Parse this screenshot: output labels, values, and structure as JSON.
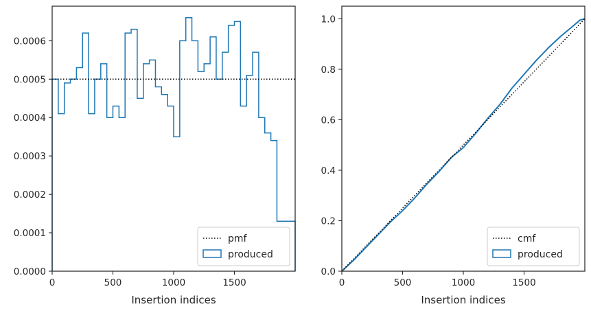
{
  "chart_data": [
    {
      "type": "histogram-step",
      "xlabel": "Insertion indices",
      "ylabel": "",
      "xlim": [
        0,
        2000
      ],
      "ylim": [
        0,
        0.00069
      ],
      "xticks": [
        0,
        500,
        1000,
        1500
      ],
      "xtick_labels": [
        "0",
        "500",
        "1000",
        "1500"
      ],
      "yticks": [
        0,
        0.0001,
        0.0002,
        0.0003,
        0.0004,
        0.0005,
        0.0006
      ],
      "ytick_labels": [
        "0.0000",
        "0.0001",
        "0.0002",
        "0.0003",
        "0.0004",
        "0.0005",
        "0.0006"
      ],
      "bin_width": 50,
      "produced": [
        0.0005,
        0.00041,
        0.00049,
        0.0005,
        0.00053,
        0.00062,
        0.00041,
        0.0005,
        0.00054,
        0.0004,
        0.00043,
        0.0004,
        0.00062,
        0.00063,
        0.00045,
        0.00054,
        0.00055,
        0.00048,
        0.00046,
        0.00043,
        0.00035,
        0.0006,
        0.00066,
        0.0006,
        0.00052,
        0.00054,
        0.00061,
        0.0005,
        0.00057,
        0.00064,
        0.00065,
        0.00043,
        0.00051,
        0.00057,
        0.0004,
        0.00036,
        0.00034,
        0.00013,
        0.00013,
        0.00013
      ],
      "pmf": 0.0005,
      "legend": {
        "position": "lower-right",
        "entries": [
          {
            "label": "pmf",
            "style": "dotted"
          },
          {
            "label": "produced",
            "style": "patch"
          }
        ]
      },
      "colors": {
        "produced": "#1f77b4",
        "pmf": "#000000"
      }
    },
    {
      "type": "line",
      "xlabel": "Insertion indices",
      "ylabel": "",
      "xlim": [
        0,
        2000
      ],
      "ylim": [
        0,
        1.05
      ],
      "xticks": [
        0,
        500,
        1000,
        1500
      ],
      "xtick_labels": [
        "0",
        "500",
        "1000",
        "1500"
      ],
      "yticks": [
        0,
        0.2,
        0.4,
        0.6,
        0.8,
        1.0
      ],
      "ytick_labels": [
        "0.0",
        "0.2",
        "0.4",
        "0.6",
        "0.8",
        "1.0"
      ],
      "cmf": {
        "x": [
          0,
          2000
        ],
        "y": [
          0,
          1
        ]
      },
      "produced": {
        "x": [
          0,
          100,
          200,
          300,
          400,
          500,
          600,
          700,
          800,
          900,
          1000,
          1100,
          1200,
          1300,
          1400,
          1500,
          1600,
          1700,
          1800,
          1900,
          1960,
          2000
        ],
        "y": [
          0,
          0.045,
          0.095,
          0.145,
          0.195,
          0.24,
          0.29,
          0.345,
          0.395,
          0.45,
          0.49,
          0.545,
          0.605,
          0.66,
          0.725,
          0.78,
          0.835,
          0.885,
          0.93,
          0.97,
          0.995,
          1.0
        ]
      },
      "legend": {
        "position": "lower-right",
        "entries": [
          {
            "label": "cmf",
            "style": "dotted"
          },
          {
            "label": "produced",
            "style": "patch"
          }
        ]
      },
      "colors": {
        "produced": "#1f77b4",
        "cmf": "#000000"
      }
    }
  ]
}
